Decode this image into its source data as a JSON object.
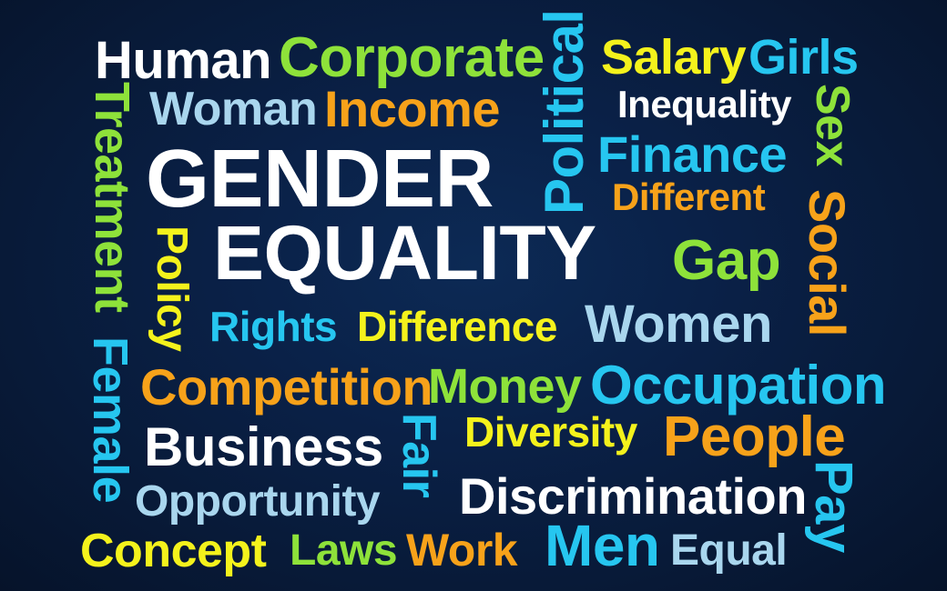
{
  "words": {
    "human": "Human",
    "corporate": "Corporate",
    "political": "Political",
    "salary": "Salary",
    "girls": "Girls",
    "woman": "Woman",
    "income": "Income",
    "inequality": "Inequality",
    "treatment": "Treatment",
    "sex": "Sex",
    "gender": "GENDER",
    "finance": "Finance",
    "different": "Different",
    "equality": "EQUALITY",
    "policy": "Policy",
    "social": "Social",
    "gap": "Gap",
    "rights": "Rights",
    "difference": "Difference",
    "women": "Women",
    "female": "Female",
    "competition": "Competition",
    "money": "Money",
    "occupation": "Occupation",
    "business": "Business",
    "fair": "Fair",
    "diversity": "Diversity",
    "people": "People",
    "opportunity": "Opportunity",
    "discrimination": "Discrimination",
    "pay": "Pay",
    "concept": "Concept",
    "laws": "Laws",
    "work": "Work",
    "men": "Men",
    "equal": "Equal"
  },
  "colors": {
    "white": "#ffffff",
    "green": "#8ee23a",
    "yellow": "#f4f21c",
    "cyan": "#26c6f0",
    "light_blue": "#a9d6ee",
    "orange": "#f7a21a"
  }
}
